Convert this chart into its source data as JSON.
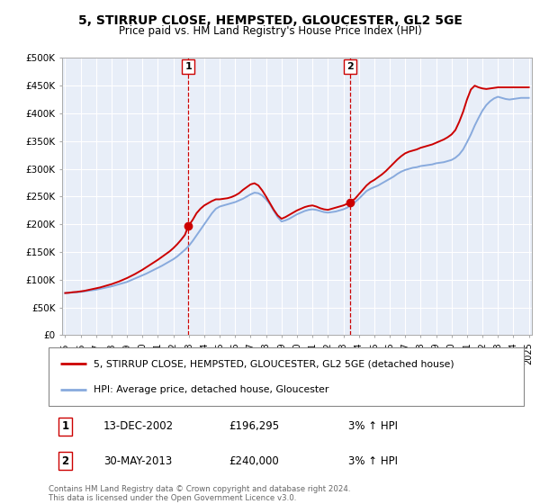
{
  "title": "5, STIRRUP CLOSE, HEMPSTED, GLOUCESTER, GL2 5GE",
  "subtitle": "Price paid vs. HM Land Registry's House Price Index (HPI)",
  "ylabel_ticks": [
    "£0",
    "£50K",
    "£100K",
    "£150K",
    "£200K",
    "£250K",
    "£300K",
    "£350K",
    "£400K",
    "£450K",
    "£500K"
  ],
  "ytick_values": [
    0,
    50000,
    100000,
    150000,
    200000,
    250000,
    300000,
    350000,
    400000,
    450000,
    500000
  ],
  "ylim": [
    0,
    500000
  ],
  "xlim_start": 1994.8,
  "xlim_end": 2025.2,
  "xtick_years": [
    1995,
    1996,
    1997,
    1998,
    1999,
    2000,
    2001,
    2002,
    2003,
    2004,
    2005,
    2006,
    2007,
    2008,
    2009,
    2010,
    2011,
    2012,
    2013,
    2014,
    2015,
    2016,
    2017,
    2018,
    2019,
    2020,
    2021,
    2022,
    2023,
    2024,
    2025
  ],
  "sale1_x": 2002.96,
  "sale1_y": 196295,
  "sale1_label": "1",
  "sale2_x": 2013.42,
  "sale2_y": 240000,
  "sale2_label": "2",
  "sale_color": "#cc0000",
  "hpi_color": "#88aadd",
  "vline_color": "#cc0000",
  "chart_bg": "#e8eef8",
  "background_color": "#ffffff",
  "grid_color": "#ffffff",
  "legend_label_red": "5, STIRRUP CLOSE, HEMPSTED, GLOUCESTER, GL2 5GE (detached house)",
  "legend_label_blue": "HPI: Average price, detached house, Gloucester",
  "table_row1": [
    "1",
    "13-DEC-2002",
    "£196,295",
    "3% ↑ HPI"
  ],
  "table_row2": [
    "2",
    "30-MAY-2013",
    "£240,000",
    "3% ↑ HPI"
  ],
  "footer": "Contains HM Land Registry data © Crown copyright and database right 2024.\nThis data is licensed under the Open Government Licence v3.0.",
  "hpi_data_x": [
    1995.0,
    1995.25,
    1995.5,
    1995.75,
    1996.0,
    1996.25,
    1996.5,
    1996.75,
    1997.0,
    1997.25,
    1997.5,
    1997.75,
    1998.0,
    1998.25,
    1998.5,
    1998.75,
    1999.0,
    1999.25,
    1999.5,
    1999.75,
    2000.0,
    2000.25,
    2000.5,
    2000.75,
    2001.0,
    2001.25,
    2001.5,
    2001.75,
    2002.0,
    2002.25,
    2002.5,
    2002.75,
    2003.0,
    2003.25,
    2003.5,
    2003.75,
    2004.0,
    2004.25,
    2004.5,
    2004.75,
    2005.0,
    2005.25,
    2005.5,
    2005.75,
    2006.0,
    2006.25,
    2006.5,
    2006.75,
    2007.0,
    2007.25,
    2007.5,
    2007.75,
    2008.0,
    2008.25,
    2008.5,
    2008.75,
    2009.0,
    2009.25,
    2009.5,
    2009.75,
    2010.0,
    2010.25,
    2010.5,
    2010.75,
    2011.0,
    2011.25,
    2011.5,
    2011.75,
    2012.0,
    2012.25,
    2012.5,
    2012.75,
    2013.0,
    2013.25,
    2013.5,
    2013.75,
    2014.0,
    2014.25,
    2014.5,
    2014.75,
    2015.0,
    2015.25,
    2015.5,
    2015.75,
    2016.0,
    2016.25,
    2016.5,
    2016.75,
    2017.0,
    2017.25,
    2017.5,
    2017.75,
    2018.0,
    2018.25,
    2018.5,
    2018.75,
    2019.0,
    2019.25,
    2019.5,
    2019.75,
    2020.0,
    2020.25,
    2020.5,
    2020.75,
    2021.0,
    2021.25,
    2021.5,
    2021.75,
    2022.0,
    2022.25,
    2022.5,
    2022.75,
    2023.0,
    2023.25,
    2023.5,
    2023.75,
    2024.0,
    2024.25,
    2024.5,
    2024.75,
    2025.0
  ],
  "hpi_data_y": [
    76000,
    76500,
    77000,
    77500,
    78000,
    79000,
    80000,
    81000,
    82000,
    83500,
    85000,
    86500,
    88000,
    90000,
    92000,
    94000,
    96000,
    99000,
    102000,
    105000,
    108000,
    111000,
    114500,
    118000,
    121500,
    125000,
    129000,
    133000,
    137000,
    142000,
    148000,
    154000,
    161000,
    170000,
    180000,
    190000,
    200000,
    210000,
    220000,
    228000,
    232000,
    234000,
    236000,
    238000,
    240000,
    243000,
    246000,
    250000,
    254000,
    257000,
    256000,
    252000,
    245000,
    236000,
    224000,
    213000,
    205000,
    207000,
    210000,
    214000,
    218000,
    221000,
    224000,
    226000,
    227000,
    226000,
    224000,
    222000,
    221000,
    222000,
    223000,
    225000,
    227000,
    230000,
    235000,
    240000,
    246000,
    253000,
    260000,
    264000,
    267000,
    270000,
    274000,
    278000,
    282000,
    286000,
    291000,
    295000,
    298000,
    300000,
    302000,
    303000,
    305000,
    306000,
    307000,
    308000,
    310000,
    311000,
    312000,
    314000,
    316000,
    320000,
    326000,
    335000,
    348000,
    362000,
    378000,
    392000,
    405000,
    415000,
    422000,
    427000,
    430000,
    428000,
    426000,
    425000,
    426000,
    427000,
    428000,
    428000,
    428000
  ],
  "red_data_x": [
    1995.0,
    1995.25,
    1995.5,
    1995.75,
    1996.0,
    1996.25,
    1996.5,
    1996.75,
    1997.0,
    1997.25,
    1997.5,
    1997.75,
    1998.0,
    1998.25,
    1998.5,
    1998.75,
    1999.0,
    1999.25,
    1999.5,
    1999.75,
    2000.0,
    2000.25,
    2000.5,
    2000.75,
    2001.0,
    2001.25,
    2001.5,
    2001.75,
    2002.0,
    2002.25,
    2002.5,
    2002.75,
    2002.96,
    2003.25,
    2003.5,
    2003.75,
    2004.0,
    2004.25,
    2004.5,
    2004.75,
    2005.0,
    2005.25,
    2005.5,
    2005.75,
    2006.0,
    2006.25,
    2006.5,
    2006.75,
    2007.0,
    2007.25,
    2007.5,
    2007.75,
    2008.0,
    2008.25,
    2008.5,
    2008.75,
    2009.0,
    2009.25,
    2009.5,
    2009.75,
    2010.0,
    2010.25,
    2010.5,
    2010.75,
    2011.0,
    2011.25,
    2011.5,
    2011.75,
    2012.0,
    2012.25,
    2012.5,
    2012.75,
    2013.0,
    2013.25,
    2013.42,
    2013.75,
    2014.0,
    2014.25,
    2014.5,
    2014.75,
    2015.0,
    2015.25,
    2015.5,
    2015.75,
    2016.0,
    2016.25,
    2016.5,
    2016.75,
    2017.0,
    2017.25,
    2017.5,
    2017.75,
    2018.0,
    2018.25,
    2018.5,
    2018.75,
    2019.0,
    2019.25,
    2019.5,
    2019.75,
    2020.0,
    2020.25,
    2020.5,
    2020.75,
    2021.0,
    2021.25,
    2021.5,
    2021.75,
    2022.0,
    2022.25,
    2022.5,
    2022.75,
    2023.0,
    2023.25,
    2023.5,
    2023.75,
    2024.0,
    2024.25,
    2024.5,
    2024.75,
    2025.0
  ],
  "red_data_y": [
    76000,
    76500,
    77500,
    78000,
    79000,
    80000,
    81500,
    83000,
    84500,
    86000,
    88000,
    90000,
    92000,
    94500,
    97000,
    100000,
    103000,
    106500,
    110000,
    114000,
    118000,
    122500,
    127000,
    131500,
    136000,
    141000,
    146000,
    151000,
    157000,
    164000,
    172000,
    181000,
    196295,
    208000,
    220000,
    228000,
    234000,
    238000,
    242000,
    245000,
    245000,
    246000,
    247000,
    249000,
    252000,
    256000,
    262000,
    267000,
    272000,
    274000,
    270000,
    261000,
    250000,
    238000,
    226000,
    216000,
    210000,
    213000,
    217000,
    221000,
    225000,
    228000,
    231000,
    233000,
    234000,
    232000,
    229000,
    227000,
    226000,
    228000,
    230000,
    232000,
    234000,
    237000,
    240000,
    246000,
    254000,
    262000,
    270000,
    276000,
    280000,
    285000,
    290000,
    296000,
    303000,
    310000,
    317000,
    323000,
    328000,
    331000,
    333000,
    335000,
    338000,
    340000,
    342000,
    344000,
    347000,
    350000,
    353000,
    357000,
    362000,
    370000,
    385000,
    403000,
    425000,
    443000,
    450000,
    447000,
    445000,
    444000,
    445000,
    446000,
    447000,
    447000,
    447000,
    447000,
    447000,
    447000,
    447000,
    447000,
    447000
  ]
}
